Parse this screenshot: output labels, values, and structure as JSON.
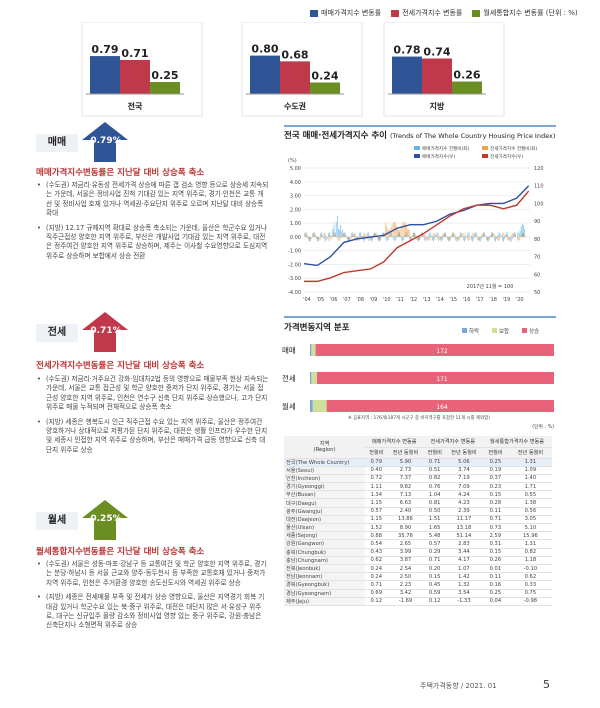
{
  "top_chart": {
    "legend": [
      "매매가격지수 변동률",
      "전세가격지수 변동률",
      "월세통합지수 변동률 (단위 : %)"
    ],
    "colors": [
      "#2f5597",
      "#c0394b",
      "#6b8e23"
    ],
    "groups": [
      {
        "name": "전국",
        "values": [
          0.79,
          0.71,
          0.25
        ]
      },
      {
        "name": "수도권",
        "values": [
          0.8,
          0.68,
          0.24
        ]
      },
      {
        "name": "지방",
        "values": [
          0.78,
          0.74,
          0.26
        ]
      }
    ]
  },
  "sections": [
    {
      "badge": "매매",
      "pct": "0.79%",
      "color": "#2f5597",
      "title": "매매가격지수변동률은 지난달 대비 상승폭 축소",
      "bullets": [
        "(수도권) 저금리·유동성 전세가격 상승에 따른 갭 검소 영향 등으로 상승세 지속되는 가운데, 서울은 정비사업 진척 기대감 있는 지역 위주로, 경기·인천은 교통 개선 및 정비사업 호재 있거나 역세권·주요단지 위주로 오르며 지난달 대비 상승폭 확대",
        "(지방) 12.17 규제지역 확대로 상승폭 축소되는 가운데, 울산은 학군수요 있거나 직주근접성 양호한 지역 위주로, 부산은 개발사업 기대감 있는 지역 위주로, 대전은 정주여건 양호한 지역 위주로 상승하며, 제주는 이사철 수요영향으로 도심지역 위주로 상승하며 보합에서 상승 전환"
      ]
    },
    {
      "badge": "전세",
      "pct": "0.71%",
      "color": "#c0394b",
      "title": "전세가격지수변동률은 지난달 대비 상승폭 축소",
      "bullets": [
        "(수도권) 저금리·거주요건 강화·임대차2법 등의 영향으로 매물부족 현상 지속되는 가운데, 서울은 교통 접근성 및 학군 양호한 중저가 단지 위주로, 경기는 서울 접근성 양호한 지역 위주로, 인천은 연수구 신축 단지 위주로 상승했으나, 고가 단지 위주로 매물 누적되며 전체적으로 상승폭 축소",
        "(지방) 세종은 행복도시 인근 직주근접 수요 있는 지역 위주로, 울산은 정주여건 양호하거나 상대적으로 저평가된 단지 위주로, 대전은 생활 인프라가 우수한 단지 및 세종시 인접한 지역 위주로 상승하며, 부산은 매매가격 급등 영향으로 신축 대단지 위주로 상승"
      ]
    },
    {
      "badge": "월세",
      "pct": "0.25%",
      "color": "#6b8e23",
      "title": "월세통합지수변동률은 지난달 대비 상승폭 축소",
      "bullets": [
        "(수도권) 서울은 성동·마포·강남구 등 교통여건 및 학군 양호한 지역 위주로, 경기는 분당·하남시 등 서울 근교와 양주·동두천시 등 부족한 교통호재 있거나 중저가 지역 위주로, 인천은 주거환경 양호한 송도신도시와 역세권 위주로 상승",
        "(지방) 세종은 전세매물 부족 및 전세가 상승 영향으로, 울산은 지역경기 회복 기대감 있거나 학군수요 있는 북·중구 위주로, 대전은 대단지 많은 서·유성구 위주로, 대구는 신규입주 물량 감소와 정비사업 영향 있는 중구 위주로, 강원·충남은 신축단지나 소형면적 위주로 상승"
      ]
    }
  ],
  "trend_chart": {
    "title": "전국 매매·전세가격지수 추이",
    "title_en": "(Trends of The Whole Country Housing Price Index)",
    "legend": [
      "매매가격지수 전월비(좌)",
      "전세가격지수 전월비(좌)",
      "매매가격지수(우)",
      "전세가격지수(우)"
    ],
    "unit_left": "(%)",
    "note": "2017년 11월 = 100",
    "left_ticks": [
      "5.00",
      "4.00",
      "3.00",
      "2.00",
      "1.00",
      "0.00",
      "-1.00",
      "-2.00",
      "-3.00",
      "-4.00"
    ],
    "right_ticks": [
      "120",
      "110",
      "100",
      "90",
      "80",
      "70",
      "60",
      "50"
    ],
    "x_ticks": [
      "'04",
      "'05",
      "'06",
      "'07",
      "'08",
      "'09",
      "'10",
      "'11",
      "'12",
      "'13",
      "'14",
      "'15",
      "'16",
      "'17",
      "'18",
      "'19",
      "'20"
    ]
  },
  "chart_data": [
    {
      "type": "bar",
      "categories": [
        "전국",
        "수도권",
        "지방"
      ],
      "series": [
        {
          "name": "매매가격지수 변동률",
          "values": [
            0.79,
            0.8,
            0.78
          ]
        },
        {
          "name": "전세가격지수 변동률",
          "values": [
            0.71,
            0.68,
            0.74
          ]
        },
        {
          "name": "월세통합지수 변동률",
          "values": [
            0.25,
            0.24,
            0.26
          ]
        }
      ],
      "ylabel": "(단위 : %)"
    },
    {
      "type": "line",
      "title": "전국 매매·전세가격지수 추이",
      "x": [
        2004,
        2005,
        2006,
        2007,
        2008,
        2009,
        2010,
        2011,
        2012,
        2013,
        2014,
        2015,
        2016,
        2017,
        2018,
        2019,
        2020,
        2020.9
      ],
      "series": [
        {
          "name": "매매가격지수(우)",
          "values": [
            66,
            65,
            70,
            78,
            80,
            81,
            82,
            86,
            88,
            88,
            90,
            94,
            96,
            99,
            100,
            100,
            103,
            110
          ]
        },
        {
          "name": "전세가격지수(우)",
          "values": [
            56,
            56,
            58,
            61,
            62,
            63,
            67,
            75,
            79,
            83,
            88,
            93,
            97,
            99,
            99,
            97,
            99,
            107
          ]
        }
      ],
      "ylim_left": [
        -4,
        5
      ],
      "ylim_right": [
        50,
        120
      ]
    },
    {
      "type": "bar",
      "title": "가격변동지역 분포",
      "categories": [
        "매매",
        "전세",
        "월세"
      ],
      "series": [
        {
          "name": "하락",
          "values": [
            1,
            1,
            2
          ]
        },
        {
          "name": "보합",
          "values": [
            3,
            4,
            10
          ]
        },
        {
          "name": "상승",
          "values": [
            172,
            171,
            164
          ]
        }
      ]
    }
  ],
  "dist": {
    "title": "가격변동지역 분포",
    "legend": [
      "하락",
      "보합",
      "상승"
    ],
    "colors": [
      "#7aa6d8",
      "#cfe09a",
      "#e8637a"
    ],
    "rows": [
      {
        "label": "매매",
        "down": 1,
        "flat": 3,
        "up": 172,
        "up_label": "172"
      },
      {
        "label": "전세",
        "down": 1,
        "flat": 4,
        "up": 171,
        "up_label": "171"
      },
      {
        "label": "월세",
        "down": 2,
        "flat": 10,
        "up": 164,
        "up_label": "164"
      }
    ],
    "note": "※ 공표지역 : 176개(187개 시군구 중 비지역구를 포함한 11개 시를 제외함)",
    "unit": "(단위 : %)"
  },
  "table": {
    "col_region": "지역",
    "col_region_en": "(Region)",
    "groups": [
      "매매가격지수 변동률",
      "전세가격지수 변동률",
      "월세통합가격지수 변동률"
    ],
    "sub": [
      "전월비",
      "전년 동월비"
    ],
    "rows": [
      [
        "전국(The Whole Country)",
        "0.79",
        "5.90",
        "0.71",
        "5.06",
        "0.25",
        "1.31"
      ],
      [
        "서울(Seoul)",
        "0.40",
        "2.73",
        "0.51",
        "3.74",
        "0.19",
        "1.09"
      ],
      [
        "인천(Incheon)",
        "0.72",
        "7.37",
        "0.82",
        "7.19",
        "0.37",
        "1.40"
      ],
      [
        "경기(Gyeonggi)",
        "1.11",
        "9.82",
        "0.76",
        "7.09",
        "0.23",
        "1.71"
      ],
      [
        "부산(Busan)",
        "1.34",
        "7.13",
        "1.04",
        "4.24",
        "0.15",
        "0.55"
      ],
      [
        "대구(Daegu)",
        "1.15",
        "6.63",
        "0.81",
        "4.23",
        "0.28",
        "1.38"
      ],
      [
        "광주(Gwangju)",
        "0.57",
        "2.40",
        "0.50",
        "2.39",
        "0.11",
        "0.56"
      ],
      [
        "대전(Daejeon)",
        "1.15",
        "13.86",
        "1.51",
        "11.17",
        "0.71",
        "3.05"
      ],
      [
        "울산(Ulsan)",
        "1.52",
        "8.90",
        "1.65",
        "13.18",
        "0.73",
        "5.10"
      ],
      [
        "세종(Sejong)",
        "0.88",
        "35.76",
        "5.48",
        "51.14",
        "2.59",
        "15.96"
      ],
      [
        "강원(Gangwon)",
        "0.54",
        "2.65",
        "0.57",
        "2.83",
        "0.31",
        "1.31"
      ],
      [
        "충북(Chungbuk)",
        "0.43",
        "3.99",
        "0.29",
        "3.44",
        "0.15",
        "0.82"
      ],
      [
        "충남(Chungnam)",
        "0.62",
        "3.87",
        "0.71",
        "4.17",
        "0.26",
        "1.18"
      ],
      [
        "전북(Jeonbuk)",
        "0.24",
        "2.54",
        "0.20",
        "1.07",
        "0.01",
        "-0.10"
      ],
      [
        "전남(Jeonnam)",
        "0.24",
        "2.50",
        "0.15",
        "1.42",
        "0.11",
        "0.62"
      ],
      [
        "경북(Gyeongbuk)",
        "0.71",
        "2.23",
        "0.45",
        "1.32",
        "0.16",
        "0.33"
      ],
      [
        "경남(Gyeongnam)",
        "0.69",
        "3.42",
        "0.59",
        "3.54",
        "0.25",
        "0.75"
      ],
      [
        "제주(Jeju)",
        "0.12",
        "-1.69",
        "0.12",
        "-1.33",
        "0.04",
        "-0.98"
      ]
    ]
  },
  "footer": {
    "text": "주택가격동향 / 2021. 01",
    "page": "5"
  }
}
